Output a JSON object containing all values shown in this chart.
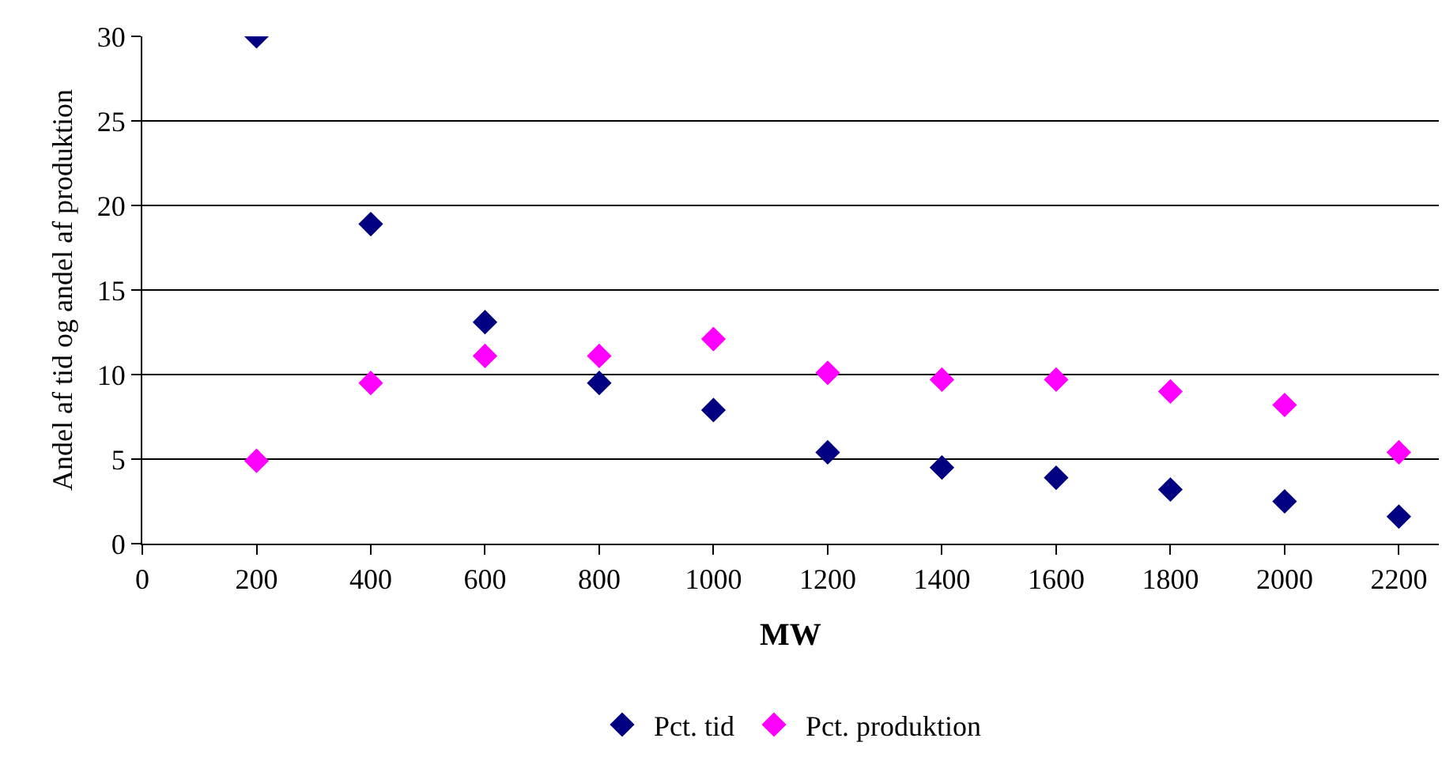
{
  "chart_data": {
    "type": "scatter",
    "xlabel": "MW",
    "ylabel": "Andel af tid og andel af produktion",
    "x": [
      200,
      400,
      600,
      800,
      1000,
      1200,
      1400,
      1600,
      1800,
      2000,
      2200
    ],
    "series": [
      {
        "name": "Pct. tid",
        "color": "#000080",
        "values": [
          30,
          18.9,
          13.1,
          9.5,
          7.9,
          5.4,
          4.5,
          3.9,
          3.2,
          2.5,
          1.6
        ]
      },
      {
        "name": "Pct. produktion",
        "color": "#ff00ff",
        "values": [
          4.9,
          9.5,
          11.1,
          11.1,
          12.1,
          10.1,
          9.7,
          9.7,
          9.0,
          8.2,
          5.4
        ]
      }
    ],
    "xlim": [
      0,
      2270
    ],
    "xticks": [
      0,
      200,
      400,
      600,
      800,
      1000,
      1200,
      1400,
      1600,
      1800,
      2000,
      2200
    ],
    "ylim": [
      0,
      30
    ],
    "yticks": [
      0,
      5,
      10,
      15,
      20,
      25,
      30
    ],
    "grid": "y",
    "legend": "bottom",
    "marker": "diamond"
  }
}
